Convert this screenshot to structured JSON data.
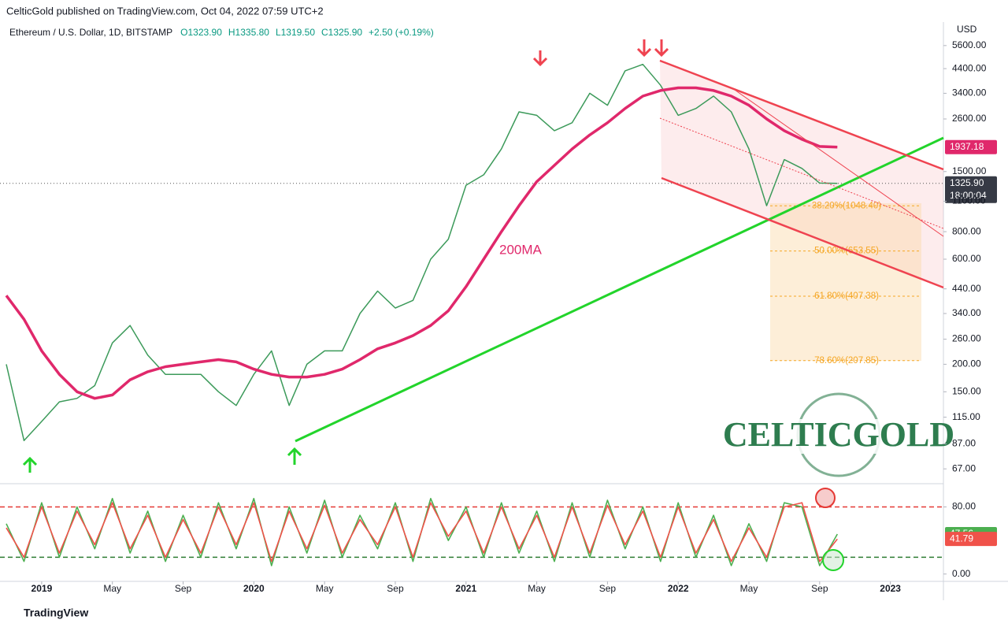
{
  "header": "CelticGold published on TradingView.com, Oct 04, 2022 07:59 UTC+2",
  "footer": "TradingView",
  "watermark": "CELTICGOLD",
  "chart_data": [
    {
      "type": "line",
      "title": "Ethereum / U.S. Dollar, 1D, BITSTAMP",
      "legend_values": [
        "O1323.90",
        "H1335.80",
        "L1319.50",
        "C1325.90",
        "+2.50 (+0.19%)"
      ],
      "y_label": "USD",
      "countdown": "18:00:04",
      "log_scale": true,
      "xlim": [
        "2018-11",
        "2023-04"
      ],
      "xticks": [
        {
          "value": "2019-01",
          "label": "2019"
        },
        {
          "value": "2019-05",
          "label": "May"
        },
        {
          "value": "2019-09",
          "label": "Sep"
        },
        {
          "value": "2020-01",
          "label": "2020"
        },
        {
          "value": "2020-05",
          "label": "May"
        },
        {
          "value": "2020-09",
          "label": "Sep"
        },
        {
          "value": "2021-01",
          "label": "2021"
        },
        {
          "value": "2021-05",
          "label": "May"
        },
        {
          "value": "2021-09",
          "label": "Sep"
        },
        {
          "value": "2022-01",
          "label": "2022"
        },
        {
          "value": "2022-05",
          "label": "May"
        },
        {
          "value": "2022-09",
          "label": "Sep"
        },
        {
          "value": "2023-01",
          "label": "2023"
        }
      ],
      "ylim": [
        59.3,
        7160
      ],
      "yticks": [
        {
          "value": 5600,
          "label": "5600.00"
        },
        {
          "value": 4400,
          "label": "4400.00"
        },
        {
          "value": 3400,
          "label": "3400.00"
        },
        {
          "value": 2600,
          "label": "2600.00"
        },
        {
          "value": 1500,
          "label": "1500.00"
        },
        {
          "value": 1100,
          "label": "1100.00"
        },
        {
          "value": 800,
          "label": "800.00"
        },
        {
          "value": 600,
          "label": "600.00"
        },
        {
          "value": 440,
          "label": "440.00"
        },
        {
          "value": 340,
          "label": "340.00"
        },
        {
          "value": 260,
          "label": "260.00"
        },
        {
          "value": 200,
          "label": "200.00"
        },
        {
          "value": 150,
          "label": "150.00"
        },
        {
          "value": 115,
          "label": "115.00"
        },
        {
          "value": 87,
          "label": "87.00"
        },
        {
          "value": 67,
          "label": "67.00"
        }
      ],
      "x": [
        "2018-11",
        "2018-12",
        "2019-01",
        "2019-02",
        "2019-03",
        "2019-04",
        "2019-05",
        "2019-06",
        "2019-07",
        "2019-08",
        "2019-09",
        "2019-10",
        "2019-11",
        "2019-12",
        "2020-01",
        "2020-02",
        "2020-03",
        "2020-04",
        "2020-05",
        "2020-06",
        "2020-07",
        "2020-08",
        "2020-09",
        "2020-10",
        "2020-11",
        "2020-12",
        "2021-01",
        "2021-02",
        "2021-03",
        "2021-04",
        "2021-05",
        "2021-06",
        "2021-07",
        "2021-08",
        "2021-09",
        "2021-10",
        "2021-11",
        "2021-12",
        "2022-01",
        "2022-02",
        "2022-03",
        "2022-04",
        "2022-05",
        "2022-06",
        "2022-07",
        "2022-08",
        "2022-09",
        "2022-10"
      ],
      "series": [
        {
          "color": "#3c9a5a",
          "width": 1.5,
          "values": [
            200,
            90,
            110,
            135,
            140,
            160,
            250,
            300,
            220,
            180,
            180,
            180,
            150,
            130,
            180,
            230,
            130,
            200,
            230,
            230,
            340,
            430,
            360,
            390,
            600,
            740,
            1300,
            1450,
            1900,
            2800,
            2700,
            2300,
            2500,
            3400,
            3000,
            4300,
            4600,
            3700,
            2700,
            2900,
            3300,
            2800,
            1900,
            1050,
            1700,
            1550,
            1330,
            1326
          ]
        },
        {
          "name": "200MA",
          "color": "#e0286b",
          "width": 3.5,
          "values": [
            410,
            320,
            230,
            180,
            150,
            140,
            145,
            170,
            185,
            195,
            200,
            205,
            210,
            205,
            190,
            180,
            175,
            175,
            180,
            190,
            210,
            235,
            250,
            270,
            300,
            350,
            450,
            600,
            800,
            1050,
            1350,
            1600,
            1900,
            2200,
            2500,
            2900,
            3300,
            3500,
            3600,
            3600,
            3500,
            3300,
            3000,
            2600,
            2300,
            2100,
            1950,
            1937.18
          ]
        }
      ],
      "price_line": {
        "value": 1325.9,
        "label": "1325.90"
      },
      "fib_levels": [
        {
          "value": 1048.4,
          "label": "38.20%(1048.40)"
        },
        {
          "value": 653.55,
          "label": "50.00%(653.55)"
        },
        {
          "value": 407.38,
          "label": "61.80%(407.38)"
        },
        {
          "value": 207.85,
          "label": "78.60%(207.85)"
        }
      ]
    },
    {
      "type": "line",
      "ylim": [
        -5,
        103
      ],
      "yticks": [
        {
          "value": 80,
          "label": "80.00"
        },
        {
          "value": 0,
          "label": "0.00"
        }
      ],
      "levels": [
        {
          "value": 80,
          "color": "#e53935"
        },
        {
          "value": 20,
          "color": "#2e7d32"
        }
      ],
      "series": [
        {
          "color": "#4caf50",
          "values": [
            60,
            15,
            85,
            20,
            80,
            30,
            90,
            25,
            75,
            15,
            70,
            20,
            85,
            30,
            90,
            10,
            80,
            25,
            88,
            20,
            70,
            30,
            85,
            15,
            90,
            40,
            80,
            20,
            85,
            25,
            75,
            15,
            85,
            20,
            88,
            30,
            80,
            15,
            85,
            20,
            70,
            10,
            60,
            15,
            85,
            80,
            10,
            47.56
          ]
        },
        {
          "color": "#f0524a",
          "values": [
            55,
            20,
            80,
            25,
            75,
            35,
            85,
            30,
            70,
            20,
            65,
            25,
            80,
            35,
            85,
            15,
            75,
            30,
            82,
            25,
            65,
            35,
            80,
            20,
            85,
            45,
            75,
            25,
            80,
            30,
            70,
            20,
            80,
            25,
            82,
            35,
            75,
            20,
            80,
            25,
            65,
            15,
            55,
            20,
            80,
            85,
            15,
            41.79
          ]
        }
      ]
    }
  ]
}
